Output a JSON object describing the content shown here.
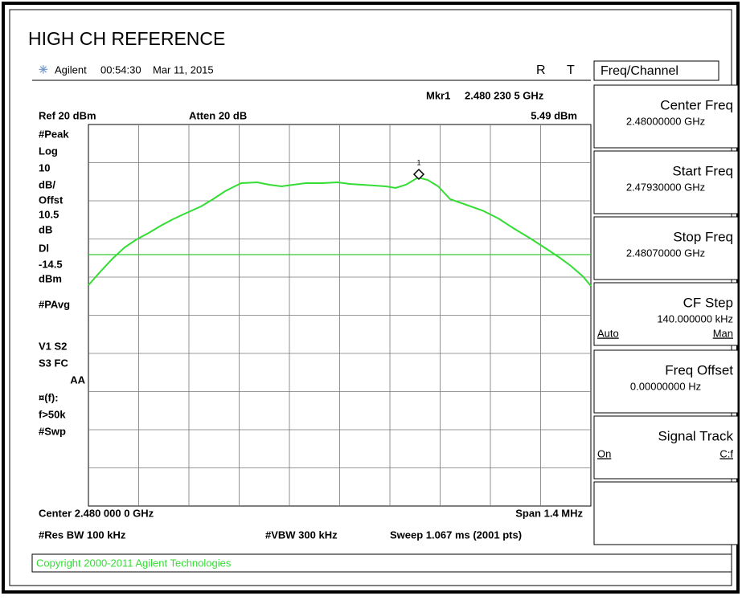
{
  "title": "HIGH CH REFERENCE",
  "status": {
    "brand": "Agilent",
    "time": "00:54:30",
    "date": "Mar 11, 2015",
    "flags": [
      "R",
      "T"
    ]
  },
  "marker": {
    "label": "Mkr1",
    "frequency": "2.480 230 5 GHz",
    "level": "5.49 dBm",
    "number": "1"
  },
  "top": {
    "ref": "Ref 20 dBm",
    "atten": "Atten 20 dB"
  },
  "left_labels": [
    "#Peak",
    "Log",
    "10",
    "dB/",
    "Offst",
    "10.5",
    "dB",
    "Dl",
    "-14.5",
    "dBm",
    "#PAvg",
    "V1  S2",
    "S3  FC",
    "AA",
    "¤(f):",
    "f>50k",
    "#Swp"
  ],
  "bottom": {
    "center": "Center 2.480 000 0 GHz",
    "span": "Span 1.4 MHz",
    "rbw": "#Res BW 100 kHz",
    "vbw": "#VBW 300 kHz",
    "sweep": "Sweep 1.067 ms (2001 pts)"
  },
  "copyright": "Copyright 2000-2011 Agilent Technologies",
  "menu": {
    "title": "Freq/Channel",
    "keys": [
      {
        "label": "Center Freq",
        "value": "2.48000000 GHz"
      },
      {
        "label": "Start Freq",
        "value": "2.47930000 GHz"
      },
      {
        "label": "Stop Freq",
        "value": "2.48070000 GHz"
      },
      {
        "label": "CF Step",
        "value": "140.000000 kHz",
        "left": "Auto",
        "right": "Man"
      },
      {
        "label": "Freq Offset",
        "value": "0.00000000 Hz"
      },
      {
        "label": "Signal Track",
        "left": "On",
        "right": "C:f"
      }
    ]
  }
}
